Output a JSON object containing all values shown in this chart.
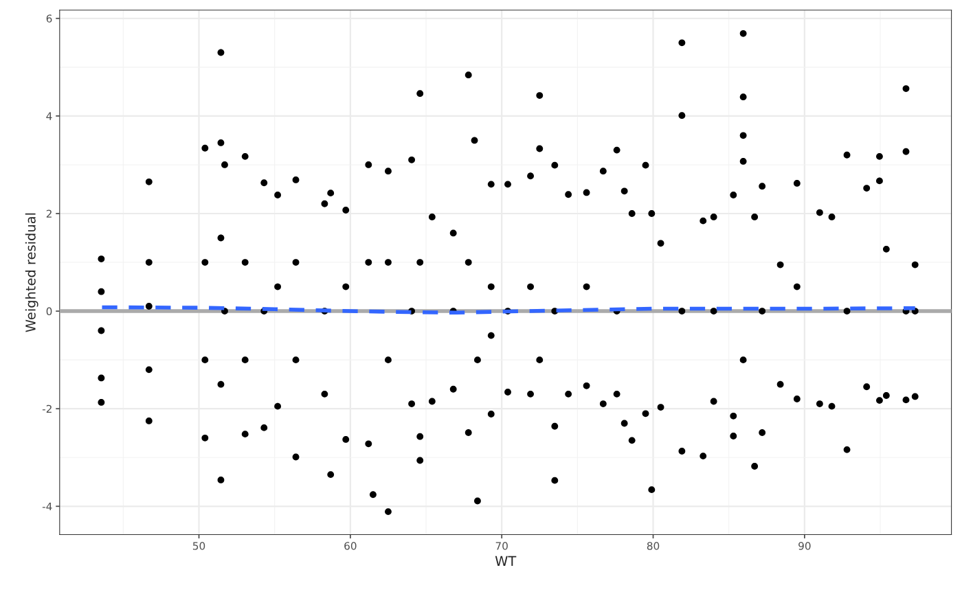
{
  "chart_data": {
    "type": "scatter",
    "xlabel": "WT",
    "ylabel": "Weighted residual",
    "xlim": [
      40.8,
      99.7
    ],
    "ylim": [
      -4.58,
      6.17
    ],
    "xticks": [
      50,
      60,
      70,
      80,
      90
    ],
    "yticks": [
      -4,
      -2,
      0,
      2,
      4,
      6
    ],
    "grid": true,
    "legend": false,
    "ref_lines": [
      {
        "axis": "y",
        "value": 0,
        "color": "#aaaaaa"
      }
    ],
    "series": [
      {
        "marker": "circle",
        "color": "#000000",
        "x": [
          43.55,
          43.55,
          43.55,
          43.55,
          43.55,
          46.7,
          46.7,
          46.7,
          46.7,
          46.7,
          50.4,
          50.4,
          50.4,
          50.4,
          51.45,
          51.45,
          51.45,
          51.45,
          51.45,
          51.7,
          51.7,
          53.05,
          53.05,
          53.05,
          53.05,
          54.3,
          54.3,
          54.3,
          55.2,
          55.2,
          55.2,
          56.4,
          56.4,
          56.4,
          56.4,
          58.3,
          58.3,
          58.3,
          58.7,
          58.7,
          59.7,
          59.7,
          59.7,
          61.2,
          61.2,
          61.2,
          61.5,
          62.5,
          62.5,
          62.5,
          62.5,
          64.05,
          64.05,
          64.05,
          64.6,
          64.6,
          64.6,
          64.6,
          65.4,
          65.4,
          66.8,
          66.8,
          66.8,
          67.8,
          67.8,
          67.8,
          68.2,
          68.4,
          68.4,
          69.3,
          69.3,
          69.3,
          69.3,
          70.4,
          70.4,
          70.4,
          71.9,
          71.9,
          71.9,
          72.5,
          72.5,
          72.5,
          73.5,
          73.5,
          73.5,
          73.5,
          74.4,
          74.4,
          75.6,
          75.6,
          75.6,
          76.7,
          76.7,
          77.6,
          77.6,
          77.6,
          78.1,
          78.1,
          78.6,
          78.6,
          79.5,
          79.5,
          79.9,
          79.9,
          80.5,
          80.5,
          81.9,
          81.9,
          81.9,
          81.9,
          83.3,
          83.3,
          84.0,
          84.0,
          84.0,
          85.3,
          85.3,
          85.3,
          85.95,
          85.95,
          85.95,
          85.95,
          85.95,
          86.7,
          86.7,
          87.2,
          87.2,
          87.2,
          88.4,
          88.4,
          89.5,
          89.5,
          89.5,
          91.0,
          91.0,
          91.8,
          91.8,
          92.8,
          92.8,
          92.8,
          94.1,
          94.1,
          94.95,
          94.95,
          94.95,
          95.4,
          95.4,
          96.7,
          96.7,
          96.7,
          96.7,
          97.3,
          97.3,
          97.3
        ],
        "values": [
          1.07,
          -1.87,
          -1.37,
          0.4,
          -0.4,
          2.65,
          -2.25,
          1.0,
          0.1,
          -1.2,
          3.34,
          -2.6,
          1.0,
          -1.0,
          5.3,
          -3.46,
          3.45,
          1.5,
          -1.5,
          3.0,
          0.0,
          3.17,
          -2.52,
          1.0,
          -1.0,
          2.63,
          -2.39,
          0.0,
          2.38,
          -1.95,
          0.5,
          2.69,
          -2.99,
          1.0,
          -1.0,
          2.2,
          -1.7,
          0.0,
          2.42,
          -3.35,
          2.07,
          -2.63,
          0.5,
          3.0,
          -2.72,
          1.0,
          -3.76,
          2.87,
          -4.11,
          1.0,
          -1.0,
          3.1,
          -1.9,
          0.0,
          4.46,
          -3.06,
          -2.57,
          1.0,
          1.93,
          -1.85,
          1.6,
          -1.6,
          0.0,
          4.84,
          -2.49,
          1.0,
          3.5,
          -3.89,
          -1.0,
          2.6,
          -2.11,
          0.5,
          -0.5,
          2.6,
          -1.66,
          0.0,
          2.77,
          -1.7,
          0.5,
          4.42,
          3.33,
          -1.0,
          2.99,
          -3.47,
          -2.36,
          0.0,
          2.39,
          -1.7,
          2.43,
          -1.53,
          0.5,
          2.87,
          -1.9,
          3.3,
          -1.7,
          0.0,
          2.46,
          -2.3,
          2.0,
          -2.65,
          2.99,
          -2.1,
          -3.66,
          2.0,
          1.39,
          -1.97,
          5.5,
          4.01,
          -2.87,
          0.0,
          1.85,
          -2.97,
          1.93,
          -1.85,
          0.0,
          2.38,
          -2.15,
          -2.56,
          5.69,
          4.39,
          3.6,
          3.07,
          -1.0,
          1.93,
          -3.18,
          2.56,
          -2.49,
          0.0,
          0.95,
          -1.5,
          2.62,
          -1.8,
          0.5,
          2.02,
          -1.9,
          1.93,
          -1.95,
          3.2,
          -2.84,
          0.0,
          2.52,
          -1.55,
          3.17,
          2.67,
          -1.83,
          1.27,
          -1.73,
          4.56,
          3.27,
          -1.82,
          0.0,
          0.95,
          -1.75,
          0.0
        ]
      },
      {
        "type": "line",
        "color": "#3366ff",
        "line_style": "dashed",
        "x": [
          43.6,
          50,
          55,
          60,
          64,
          67,
          70,
          75,
          80,
          85,
          90,
          97.3
        ],
        "values": [
          0.08,
          0.07,
          0.04,
          0.0,
          -0.02,
          -0.03,
          -0.01,
          0.02,
          0.05,
          0.05,
          0.05,
          0.06
        ]
      }
    ]
  }
}
